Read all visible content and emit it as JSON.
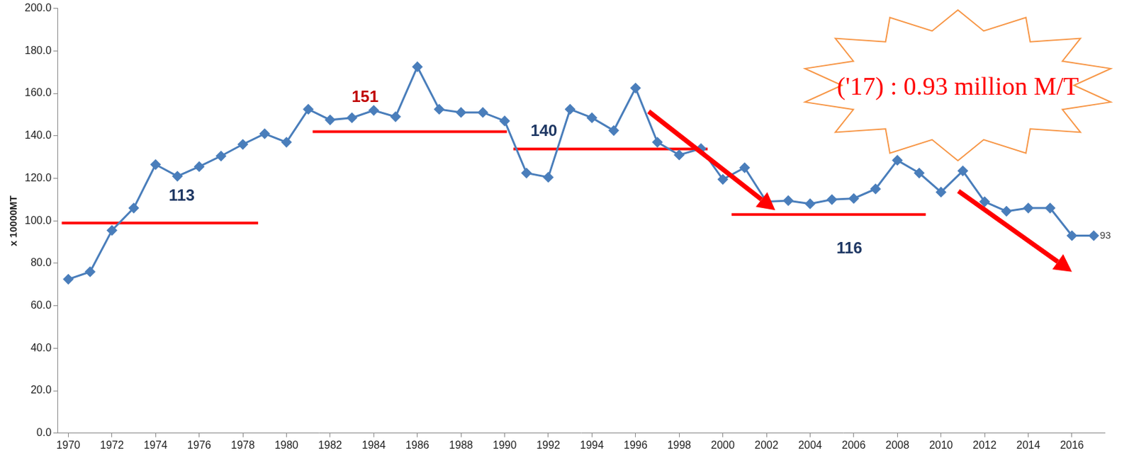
{
  "chart_data": {
    "type": "line",
    "y_label": "x 10000MT",
    "x": [
      1970,
      1971,
      1972,
      1973,
      1974,
      1975,
      1976,
      1977,
      1978,
      1979,
      1980,
      1981,
      1982,
      1983,
      1984,
      1985,
      1986,
      1987,
      1988,
      1989,
      1990,
      1991,
      1992,
      1993,
      1994,
      1995,
      1996,
      1997,
      1998,
      1999,
      2000,
      2001,
      2002,
      2003,
      2004,
      2005,
      2006,
      2007,
      2008,
      2009,
      2010,
      2011,
      2012,
      2013,
      2014,
      2015,
      2016,
      2017
    ],
    "values": [
      72.5,
      76,
      95.5,
      106,
      126.5,
      121,
      125.5,
      130.5,
      136,
      141,
      137,
      152.5,
      147.5,
      148.5,
      152,
      149,
      172.5,
      152.5,
      151,
      151,
      147,
      122.5,
      120.5,
      152.5,
      148.5,
      142.5,
      162.5,
      137,
      131,
      134,
      119.5,
      125,
      109,
      109.5,
      108,
      110,
      110.5,
      115,
      128.5,
      122.5,
      113.5,
      123.5,
      109,
      104.5,
      106,
      106,
      93,
      93
    ],
    "color": "#4a7ebb",
    "marker": "diamond",
    "xlim": [
      1969.5,
      2017.5
    ],
    "xticks": [
      1970,
      1972,
      1974,
      1976,
      1978,
      1980,
      1982,
      1984,
      1986,
      1988,
      1990,
      1992,
      1994,
      1996,
      1998,
      2000,
      2002,
      2004,
      2006,
      2008,
      2010,
      2012,
      2014,
      2016
    ],
    "ylim": [
      0,
      200
    ],
    "yticks": [
      {
        "value": 0,
        "label": "0.0"
      },
      {
        "value": 20,
        "label": "20.0"
      },
      {
        "value": 40,
        "label": "40.0"
      },
      {
        "value": 60,
        "label": "60.0"
      },
      {
        "value": 80,
        "label": "80.0"
      },
      {
        "value": 100,
        "label": "100.0"
      },
      {
        "value": 120,
        "label": "120.0"
      },
      {
        "value": 140,
        "label": "140.0"
      },
      {
        "value": 160,
        "label": "160.0"
      },
      {
        "value": 180,
        "label": "180.0"
      },
      {
        "value": 200,
        "label": "200.0"
      }
    ],
    "grid": false,
    "reference_lines": [
      {
        "x_start": 1969.7,
        "x_end": 1978.7,
        "y": 99,
        "color": "#ff0000"
      },
      {
        "x_start": 1981.2,
        "x_end": 1990.1,
        "y": 142,
        "color": "#ff0000"
      },
      {
        "x_start": 1990.4,
        "x_end": 1999.3,
        "y": 133.8,
        "color": "#ff0000"
      },
      {
        "x_start": 2000.4,
        "x_end": 2009.3,
        "y": 103,
        "color": "#ff0000"
      }
    ],
    "annotations": [
      {
        "text": "113",
        "x": 1975.2,
        "y": 111.5,
        "color": "#1f3864"
      },
      {
        "text": "151",
        "x": 1983.6,
        "y": 158,
        "color": "#c00000"
      },
      {
        "text": "140",
        "x": 1991.8,
        "y": 142,
        "color": "#1f3864"
      },
      {
        "text": "116",
        "x": 2005.8,
        "y": 86.7,
        "color": "#1f3864"
      },
      {
        "text": "93",
        "x": 2017,
        "y": 93,
        "color": "#404040",
        "position": "right"
      }
    ],
    "arrows": [
      {
        "from": [
          1996.6,
          151.5
        ],
        "to": [
          2002.4,
          105
        ],
        "color": "#ff0000"
      },
      {
        "from": [
          2010.8,
          114
        ],
        "to": [
          2016,
          76
        ],
        "color": "#ff0000"
      }
    ],
    "callout": {
      "text": "('17) : 0.93 million M/T",
      "color": "#ff0000",
      "border_color": "#f79646"
    }
  }
}
